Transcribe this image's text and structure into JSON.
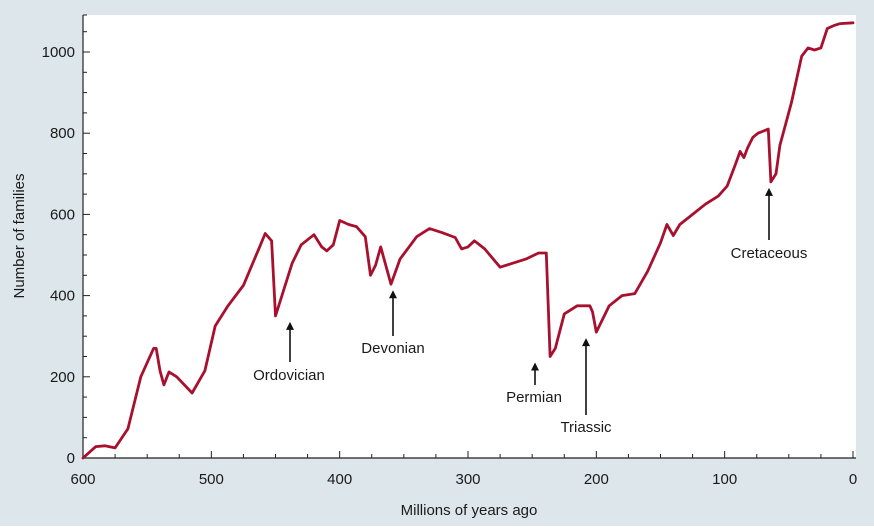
{
  "chart_data": {
    "type": "line",
    "title": "",
    "xlabel": "Millions of years ago",
    "ylabel": "Number of families",
    "xlim": [
      600,
      0
    ],
    "ylim": [
      0,
      1080
    ],
    "x_axis_reversed": true,
    "grid": false,
    "legend": "none",
    "x_ticks": [
      600,
      500,
      400,
      300,
      200,
      100,
      0
    ],
    "y_ticks": [
      0,
      200,
      400,
      600,
      800,
      1000
    ],
    "series": [
      {
        "color": "#a8102e",
        "points": [
          [
            600,
            0
          ],
          [
            590,
            28
          ],
          [
            583,
            30
          ],
          [
            575,
            25
          ],
          [
            565,
            72
          ],
          [
            555,
            200
          ],
          [
            545,
            270
          ],
          [
            543,
            270
          ],
          [
            540,
            215
          ],
          [
            537,
            180
          ],
          [
            533,
            212
          ],
          [
            527,
            200
          ],
          [
            515,
            160
          ],
          [
            505,
            215
          ],
          [
            497,
            325
          ],
          [
            487,
            375
          ],
          [
            475,
            425
          ],
          [
            463,
            515
          ],
          [
            458,
            553
          ],
          [
            453,
            535
          ],
          [
            450,
            350
          ],
          [
            443,
            420
          ],
          [
            437,
            480
          ],
          [
            430,
            525
          ],
          [
            420,
            550
          ],
          [
            414,
            520
          ],
          [
            410,
            510
          ],
          [
            405,
            525
          ],
          [
            400,
            585
          ],
          [
            393,
            575
          ],
          [
            387,
            570
          ],
          [
            380,
            545
          ],
          [
            376,
            450
          ],
          [
            372,
            475
          ],
          [
            368,
            520
          ],
          [
            360,
            428
          ],
          [
            353,
            490
          ],
          [
            340,
            545
          ],
          [
            330,
            565
          ],
          [
            320,
            555
          ],
          [
            310,
            543
          ],
          [
            305,
            515
          ],
          [
            300,
            520
          ],
          [
            295,
            535
          ],
          [
            287,
            515
          ],
          [
            275,
            470
          ],
          [
            267,
            478
          ],
          [
            255,
            490
          ],
          [
            245,
            505
          ],
          [
            239,
            505
          ],
          [
            236,
            250
          ],
          [
            232,
            270
          ],
          [
            225,
            355
          ],
          [
            215,
            375
          ],
          [
            205,
            375
          ],
          [
            203,
            360
          ],
          [
            200,
            310
          ],
          [
            190,
            375
          ],
          [
            180,
            400
          ],
          [
            170,
            405
          ],
          [
            160,
            460
          ],
          [
            150,
            530
          ],
          [
            145,
            575
          ],
          [
            140,
            548
          ],
          [
            135,
            575
          ],
          [
            125,
            600
          ],
          [
            115,
            625
          ],
          [
            105,
            645
          ],
          [
            98,
            670
          ],
          [
            92,
            720
          ],
          [
            88,
            755
          ],
          [
            85,
            740
          ],
          [
            82,
            765
          ],
          [
            78,
            790
          ],
          [
            74,
            800
          ],
          [
            66,
            810
          ],
          [
            64,
            680
          ],
          [
            60,
            700
          ],
          [
            57,
            770
          ],
          [
            48,
            875
          ],
          [
            40,
            990
          ],
          [
            35,
            1010
          ],
          [
            30,
            1005
          ],
          [
            25,
            1010
          ],
          [
            20,
            1058
          ],
          [
            15,
            1065
          ],
          [
            10,
            1070
          ],
          [
            0,
            1072
          ]
        ]
      }
    ],
    "annotations": [
      {
        "label": "Ordovician",
        "x": 440,
        "y": 350
      },
      {
        "label": "Devonian",
        "x": 365,
        "y": 428
      },
      {
        "label": "Permian",
        "x": 245,
        "y": 250
      },
      {
        "label": "Triassic",
        "x": 205,
        "y": 310
      },
      {
        "label": "Cretaceous",
        "x": 65,
        "y": 680
      }
    ]
  }
}
